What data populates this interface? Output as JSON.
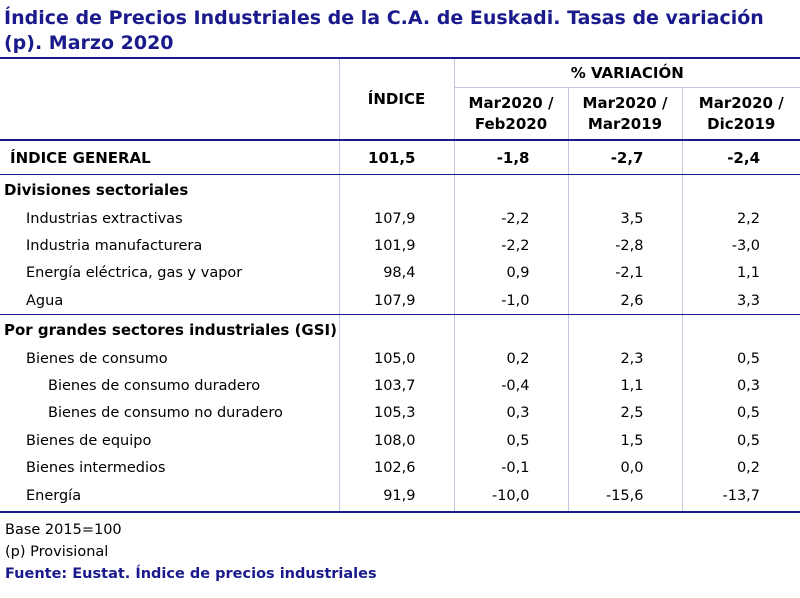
{
  "title": "Índice de Precios Industriales de la C.A. de Euskadi. Tasas de variación (p). Marzo 2020",
  "header": {
    "indice": "ÍNDICE",
    "variacion": "% VARIACIÓN",
    "col1_line1": "Mar2020 /",
    "col1_line2": "Feb2020",
    "col2_line1": "Mar2020 /",
    "col2_line2": "Mar2019",
    "col3_line1": "Mar2020 /",
    "col3_line2": "Dic2019"
  },
  "general": {
    "label": "ÍNDICE GENERAL",
    "indice": "101,5",
    "v1": "-1,8",
    "v2": "-2,7",
    "v3": "-2,4"
  },
  "section1": {
    "title": "Divisiones sectoriales",
    "rows": [
      {
        "label": "Industrias extractivas",
        "indice": "107,9",
        "v1": "-2,2",
        "v2": "3,5",
        "v3": "2,2"
      },
      {
        "label": "Industria manufacturera",
        "indice": "101,9",
        "v1": "-2,2",
        "v2": "-2,8",
        "v3": "-3,0"
      },
      {
        "label": "Energía eléctrica, gas y vapor",
        "indice": "98,4",
        "v1": "0,9",
        "v2": "-2,1",
        "v3": "1,1"
      },
      {
        "label": "Agua",
        "indice": "107,9",
        "v1": "-1,0",
        "v2": "2,6",
        "v3": "3,3"
      }
    ]
  },
  "section2": {
    "title": "Por grandes sectores industriales (GSI)",
    "rows": [
      {
        "label": "Bienes de consumo",
        "indice": "105,0",
        "v1": "0,2",
        "v2": "2,3",
        "v3": "0,5"
      },
      {
        "label": "Bienes de consumo duradero",
        "indice": "103,7",
        "v1": "-0,4",
        "v2": "1,1",
        "v3": "0,3"
      },
      {
        "label": "Bienes de consumo no duradero",
        "indice": "105,3",
        "v1": "0,3",
        "v2": "2,5",
        "v3": "0,5"
      },
      {
        "label": "Bienes de equipo",
        "indice": "108,0",
        "v1": "0,5",
        "v2": "1,5",
        "v3": "0,5"
      },
      {
        "label": "Bienes intermedios",
        "indice": "102,6",
        "v1": "-0,1",
        "v2": "0,0",
        "v3": "0,2"
      },
      {
        "label": "Energía",
        "indice": "91,9",
        "v1": "-10,0",
        "v2": "-15,6",
        "v3": "-13,7"
      }
    ]
  },
  "notes": {
    "base": "Base 2015=100",
    "provisional": "(p) Provisional",
    "source": "Fuente: Eustat. Índice de precios industriales"
  }
}
